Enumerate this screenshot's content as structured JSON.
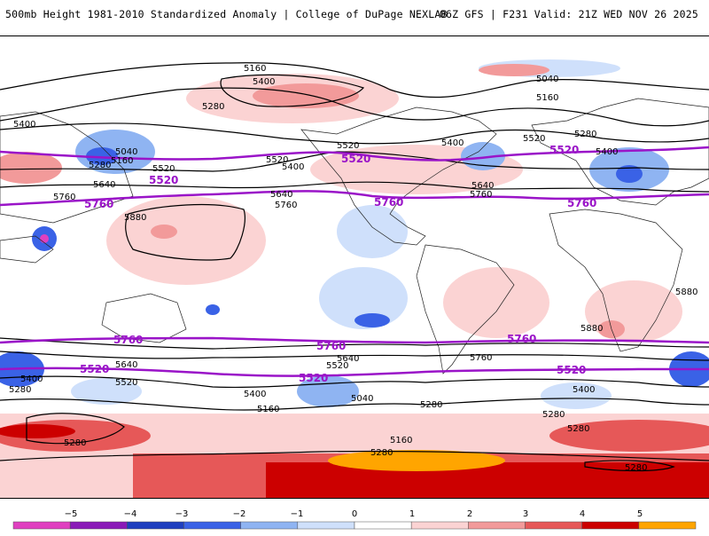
{
  "header": {
    "left_title": "500mb Height 1981-2010 Standardized Anomaly | College of DuPage NEXLAB",
    "right_title": "06Z GFS | F231 Valid: 21Z WED NOV 26 2025"
  },
  "map": {
    "contour_labels_black": [
      "5160",
      "5400",
      "5280",
      "5040",
      "5160",
      "5400",
      "5280",
      "5520",
      "5640",
      "5760",
      "5880",
      "5520",
      "5400",
      "5040",
      "5160",
      "5400",
      "5520",
      "5280",
      "5400",
      "5640",
      "5760",
      "5880",
      "5880",
      "5520",
      "5640",
      "5760",
      "5640",
      "5400",
      "5520",
      "5280",
      "5400",
      "5160",
      "5040",
      "5280",
      "5160",
      "5280",
      "5280",
      "5280",
      "5280",
      "5400",
      "5760",
      "5640",
      "5520",
      "5280"
    ],
    "contour_labels_purple": [
      "5520",
      "5760",
      "5520",
      "5760",
      "5520",
      "5760",
      "5760",
      "5520",
      "5760",
      "5520",
      "5760",
      "5520"
    ]
  },
  "colorbar": {
    "ticks": [
      "−5",
      "−4",
      "−3",
      "−2",
      "−1",
      "0",
      "1",
      "2",
      "3",
      "4",
      "5"
    ],
    "colors": [
      "#e040c0",
      "#8a1ab8",
      "#1f3fbf",
      "#3a62e6",
      "#8fb4f2",
      "#cfe0fb",
      "#ffffff",
      "#fbd3d3",
      "#f29a9a",
      "#e65858",
      "#cc0000",
      "#ffa500"
    ]
  }
}
